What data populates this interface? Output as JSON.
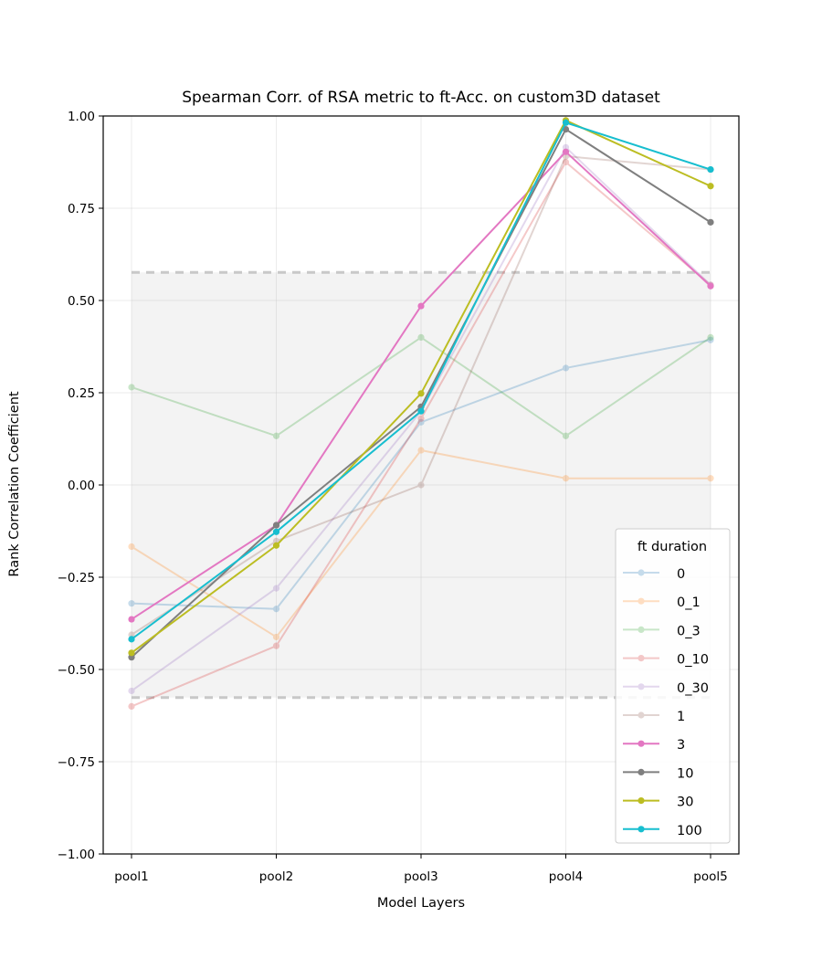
{
  "chart_data": {
    "type": "line",
    "title": "Spearman Corr. of RSA metric to ft-Acc. on custom3D dataset",
    "xlabel": "Model Layers",
    "ylabel": "Rank Correlation Coefficient",
    "categories": [
      "pool1",
      "pool2",
      "pool3",
      "pool4",
      "pool5"
    ],
    "ylim": [
      -1.0,
      1.0
    ],
    "yticks": [
      "−1.00",
      "−0.75",
      "−0.50",
      "−0.25",
      "0.00",
      "0.25",
      "0.50",
      "0.75",
      "1.00"
    ],
    "ytick_values": [
      -1.0,
      -0.75,
      -0.5,
      -0.25,
      0.0,
      0.25,
      0.5,
      0.75,
      1.0
    ],
    "grid": true,
    "significance_band": [
      -0.576,
      0.576
    ],
    "legend": {
      "title": "ft duration",
      "placement": "lower-right"
    },
    "series": [
      {
        "name": "0",
        "color": "#1f77b4",
        "opacity": 0.25,
        "values": [
          -0.321,
          -0.336,
          0.17,
          0.317,
          0.393
        ]
      },
      {
        "name": "0_1",
        "color": "#ff7f0e",
        "opacity": 0.25,
        "values": [
          -0.167,
          -0.412,
          0.094,
          0.018,
          0.018
        ]
      },
      {
        "name": "0_3",
        "color": "#2ca02c",
        "opacity": 0.25,
        "values": [
          0.265,
          0.133,
          0.4,
          0.133,
          0.4
        ]
      },
      {
        "name": "0_10",
        "color": "#d62728",
        "opacity": 0.25,
        "values": [
          -0.6,
          -0.436,
          0.18,
          0.875,
          0.542
        ]
      },
      {
        "name": "0_30",
        "color": "#9467bd",
        "opacity": 0.25,
        "values": [
          -0.558,
          -0.28,
          0.2,
          0.915,
          0.542
        ]
      },
      {
        "name": "1",
        "color": "#8c564b",
        "opacity": 0.25,
        "values": [
          -0.406,
          -0.152,
          0.0,
          0.891,
          0.855
        ]
      },
      {
        "name": "3",
        "color": "#e377c2",
        "opacity": 1.0,
        "values": [
          -0.364,
          -0.109,
          0.485,
          0.903,
          0.539
        ]
      },
      {
        "name": "10",
        "color": "#7f7f7f",
        "opacity": 1.0,
        "values": [
          -0.467,
          -0.109,
          0.212,
          0.964,
          0.712
        ]
      },
      {
        "name": "30",
        "color": "#bcbd22",
        "opacity": 1.0,
        "values": [
          -0.455,
          -0.164,
          0.248,
          0.988,
          0.81
        ]
      },
      {
        "name": "100",
        "color": "#17becf",
        "opacity": 1.0,
        "values": [
          -0.418,
          -0.127,
          0.2,
          0.982,
          0.855
        ]
      }
    ]
  }
}
